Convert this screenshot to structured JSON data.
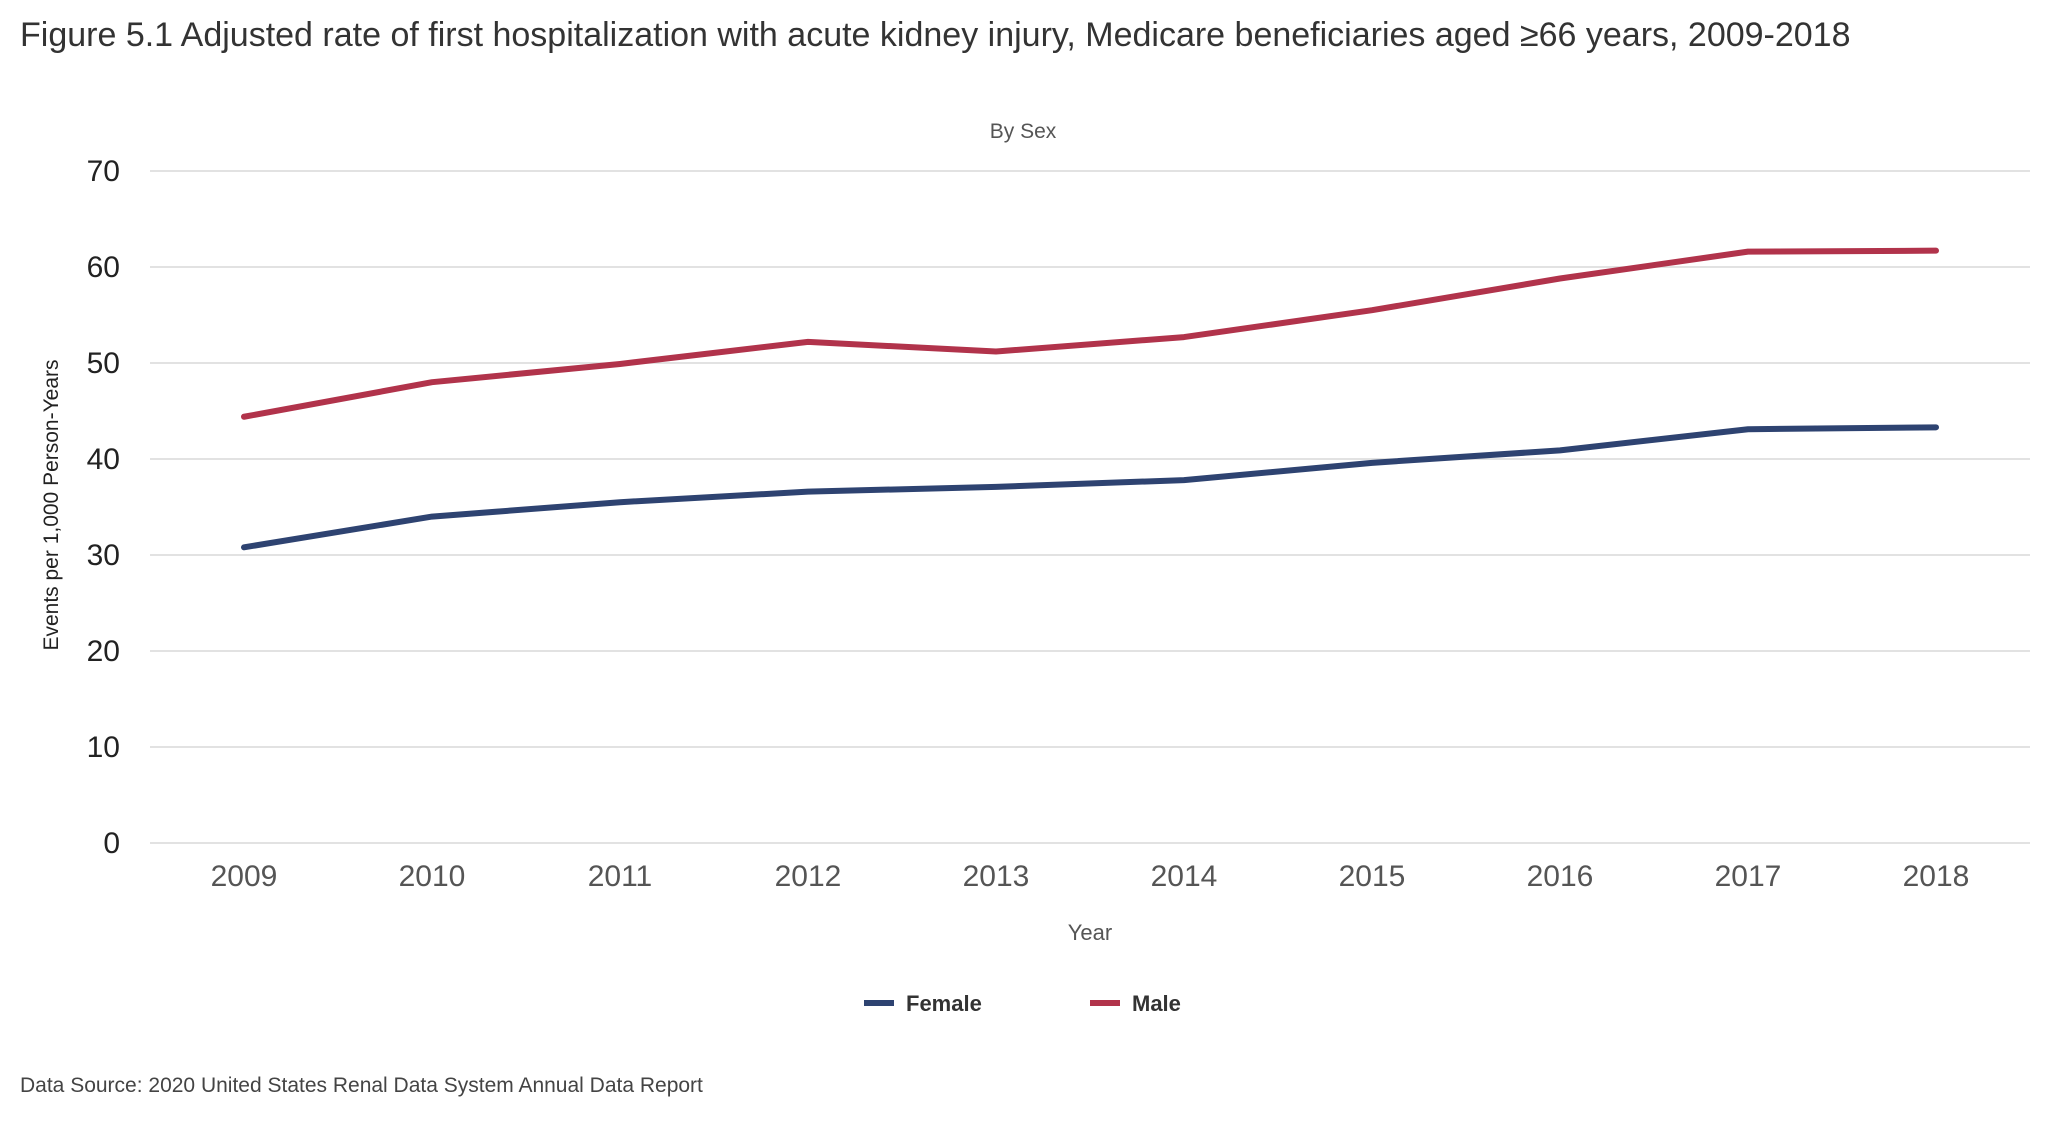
{
  "figure": {
    "title": "Figure 5.1 Adjusted rate of first hospitalization with acute kidney injury, Medicare beneficiaries aged ≥66 years, 2009-2018",
    "source": "Data Source: 2020 United States Renal Data System Annual Data Report"
  },
  "colors": {
    "female": "#2e4371",
    "male": "#b1334b",
    "grid": "#d9d9d9",
    "text": "#333333"
  },
  "chart_data": {
    "type": "line",
    "title": "",
    "subtitle": "By Sex",
    "xlabel": "Year",
    "ylabel": "Events per 1,000 Person-Years",
    "x": [
      "2009",
      "2010",
      "2011",
      "2012",
      "2013",
      "2014",
      "2015",
      "2016",
      "2017",
      "2018"
    ],
    "ylim": [
      0,
      70
    ],
    "yticks": [
      0,
      10,
      20,
      30,
      40,
      50,
      60,
      70
    ],
    "grid": true,
    "legend_position": "bottom-center",
    "series": [
      {
        "name": "Female",
        "color": "#2e4371",
        "values": [
          30.8,
          34.0,
          35.5,
          36.6,
          37.1,
          37.8,
          39.6,
          40.9,
          43.1,
          43.3
        ]
      },
      {
        "name": "Male",
        "color": "#b1334b",
        "values": [
          44.4,
          48.0,
          49.9,
          52.2,
          51.2,
          52.7,
          55.5,
          58.8,
          61.6,
          61.7
        ]
      }
    ]
  }
}
